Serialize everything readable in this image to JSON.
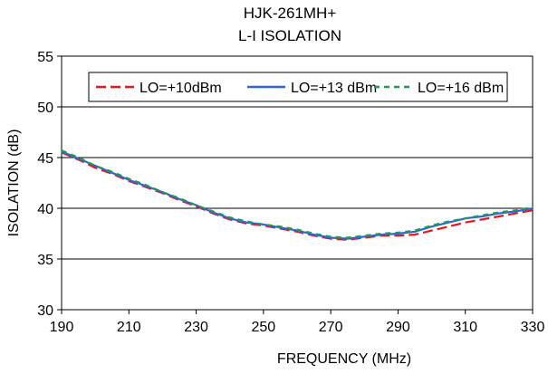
{
  "chart_data": {
    "type": "line",
    "title": "HJK-261MH+",
    "subtitle": "L-I ISOLATION",
    "xlabel": "FREQUENCY (MHz)",
    "ylabel": "ISOLATION (dB)",
    "xlim": [
      190,
      330
    ],
    "ylim": [
      30,
      55
    ],
    "x_ticks": [
      "190",
      "210",
      "230",
      "250",
      "270",
      "290",
      "310",
      "330"
    ],
    "y_ticks": [
      "30",
      "35",
      "40",
      "45",
      "50",
      "55"
    ],
    "grid": "horizontal",
    "legend_position": "top",
    "x": [
      190,
      195,
      200,
      205,
      210,
      215,
      220,
      225,
      230,
      235,
      240,
      245,
      250,
      255,
      260,
      265,
      270,
      275,
      280,
      285,
      290,
      295,
      300,
      305,
      310,
      315,
      320,
      325,
      330
    ],
    "series": [
      {
        "name": "LO=+10dBm",
        "color": "#e8141e",
        "dash": "long-dash",
        "values": [
          45.5,
          44.8,
          44.0,
          43.4,
          42.7,
          42.1,
          41.5,
          40.8,
          40.2,
          39.5,
          38.9,
          38.5,
          38.3,
          38.0,
          37.7,
          37.3,
          37.0,
          36.9,
          37.1,
          37.3,
          37.3,
          37.4,
          37.8,
          38.2,
          38.6,
          38.9,
          39.2,
          39.5,
          39.8
        ]
      },
      {
        "name": "LO=+13 dBm",
        "color": "#2f63df",
        "dash": "solid",
        "values": [
          45.6,
          44.9,
          44.2,
          43.5,
          42.8,
          42.2,
          41.6,
          40.9,
          40.3,
          39.6,
          39.0,
          38.6,
          38.4,
          38.1,
          37.8,
          37.4,
          37.1,
          37.0,
          37.2,
          37.4,
          37.5,
          37.7,
          38.2,
          38.6,
          39.0,
          39.2,
          39.5,
          39.7,
          40.0
        ]
      },
      {
        "name": "LO=+16 dBm",
        "color": "#1e9b53",
        "dash": "short-dash",
        "values": [
          45.7,
          45.0,
          44.2,
          43.6,
          42.9,
          42.3,
          41.6,
          41.0,
          40.3,
          39.7,
          39.1,
          38.7,
          38.4,
          38.2,
          37.9,
          37.5,
          37.2,
          37.1,
          37.3,
          37.5,
          37.6,
          37.8,
          38.3,
          38.7,
          39.0,
          39.3,
          39.6,
          39.8,
          40.1
        ]
      }
    ]
  }
}
